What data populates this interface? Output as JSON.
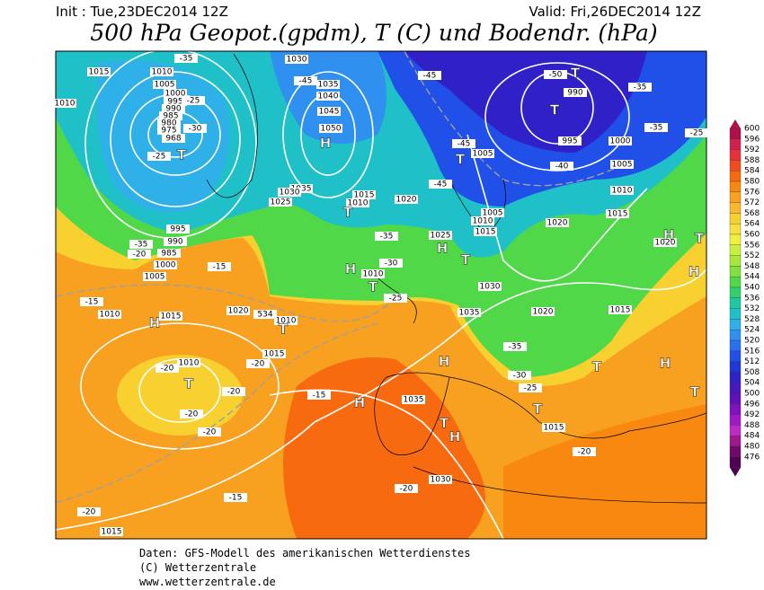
{
  "header": {
    "init": "Init : Tue,23DEC2014 12Z",
    "valid": "Valid: Fri,26DEC2014 12Z",
    "title": "500 hPa Geopot.(gpdm), T (C) und Bodendr. (hPa)"
  },
  "map": {
    "labels": [
      "1015",
      "1010",
      "1005",
      "1000",
      "995",
      "990",
      "985",
      "980",
      "975",
      "968",
      "T",
      "-35",
      "-30",
      "-25",
      "-25",
      "1030",
      "-45",
      "1035",
      "1040",
      "1045",
      "1050",
      "H",
      "1035",
      "1030",
      "1025",
      "1015",
      "1010",
      "T",
      "1020",
      "-35",
      "H",
      "1010",
      "T",
      "-30",
      "-25",
      "1010",
      "T",
      "1015",
      "-20",
      "1020",
      "534",
      "-45",
      "-45",
      "T",
      "1005",
      "-45",
      "1005",
      "1010",
      "1015",
      "1025",
      "H",
      "T",
      "1030",
      "1035",
      "H",
      "1035",
      "-30",
      "-25",
      "T",
      "1015",
      "H",
      "-15",
      "H",
      "T",
      "-20",
      "1030",
      "-20",
      "-50",
      "T",
      "990",
      "T",
      "995",
      "1000",
      "1005",
      "-40",
      "1010",
      "1015",
      "1020",
      "1020",
      "H",
      "T",
      "-35",
      "-35",
      "-25",
      "H",
      "1015",
      "1020",
      "-35",
      "T",
      "H",
      "T",
      "1010",
      "-35",
      "-20",
      "995",
      "990",
      "985",
      "1000",
      "1005",
      "-15",
      "-15",
      "1010",
      "H",
      "1015",
      "-20",
      "1010",
      "T",
      "-20",
      "-20",
      "-20",
      "-15",
      "-20",
      "1015"
    ]
  },
  "colorbar": {
    "labels": [
      600,
      596,
      592,
      588,
      584,
      580,
      576,
      572,
      568,
      564,
      560,
      556,
      552,
      548,
      544,
      540,
      536,
      532,
      528,
      524,
      520,
      516,
      512,
      508,
      504,
      500,
      496,
      492,
      488,
      484,
      480,
      476
    ],
    "colors": [
      "#b0104a",
      "#d02050",
      "#e8303a",
      "#f04a20",
      "#f86a10",
      "#f88810",
      "#f8a020",
      "#f8b830",
      "#f8d030",
      "#f8e040",
      "#f0f040",
      "#c8f040",
      "#a8e838",
      "#80e040",
      "#50d848",
      "#30d070",
      "#20c8a0",
      "#20c0c8",
      "#30b0e8",
      "#3090f0",
      "#2870f0",
      "#2050e8",
      "#2038d8",
      "#3020c8",
      "#4818c0",
      "#6010b8",
      "#8010c0",
      "#a018c8",
      "#c028c8",
      "#a01890",
      "#700870",
      "#500050"
    ]
  },
  "footer": {
    "line1": "Daten: GFS-Modell des amerikanischen Wetterdienstes",
    "line2": "(C) Wetterzentrale",
    "line3": "www.wetterzentrale.de"
  }
}
